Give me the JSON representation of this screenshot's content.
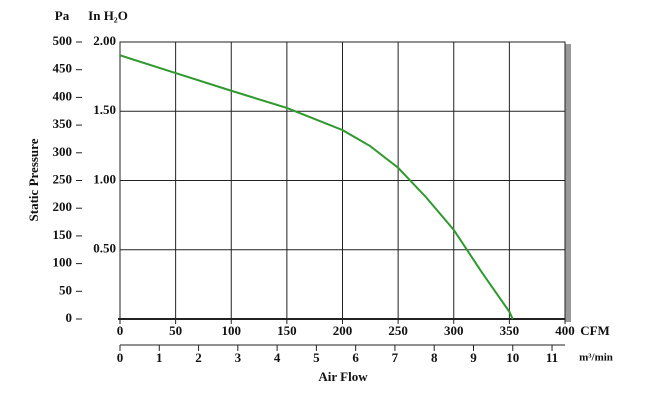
{
  "chart_data": {
    "type": "line",
    "y_label": "Static Pressure",
    "x_label": "Air Flow",
    "y_unit": "Pa",
    "y2_unit": "In H₂O",
    "x_unit": "CFM",
    "x2_unit": "m³/min",
    "x": [
      0,
      50,
      100,
      150,
      200,
      225,
      250,
      275,
      300,
      325,
      350,
      353
    ],
    "series": [
      {
        "color": "#2e9a2e",
        "values": [
          476,
          444,
          412,
          381,
          341,
          312,
          273,
          220,
          161,
          85,
          13,
          0
        ]
      }
    ],
    "xlim": [
      0,
      400
    ],
    "xticks": [
      0,
      50,
      100,
      150,
      200,
      250,
      300,
      350,
      400
    ],
    "x2lim": [
      0,
      11.33
    ],
    "x2ticks": [
      0,
      1,
      2,
      3,
      4,
      5,
      6,
      7,
      8,
      9,
      10,
      11
    ],
    "ylim": [
      0,
      500
    ],
    "yticks": [
      0,
      50,
      100,
      150,
      200,
      250,
      300,
      350,
      400,
      450,
      500
    ],
    "y2lim": [
      0,
      2.0
    ],
    "y2ticks": [
      {
        "value": 0.5,
        "label": "0.50"
      },
      {
        "value": 1.0,
        "label": "1.00"
      },
      {
        "value": 1.5,
        "label": "1.50"
      },
      {
        "value": 2.0,
        "label": "2.00"
      }
    ],
    "grid": true
  }
}
